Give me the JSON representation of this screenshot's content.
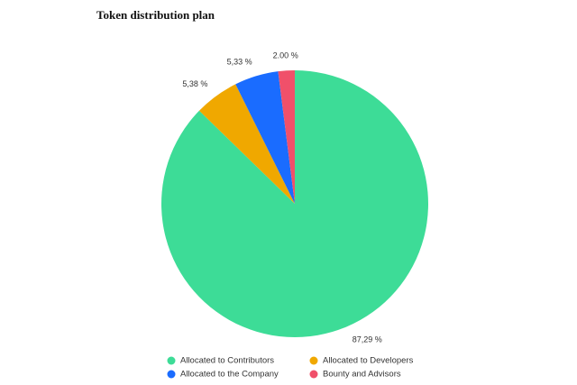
{
  "chart_data": {
    "type": "pie",
    "title": "Token distribution plan",
    "categories": [
      "Allocated to Contributors",
      "Allocated to Developers",
      "Allocated to the Company",
      "Bounty and Advisors"
    ],
    "values": [
      87.29,
      5.38,
      5.33,
      2.0
    ],
    "value_labels": [
      "87,29 %",
      "5,38 %",
      "5,33 %",
      "2.00 %"
    ],
    "colors": [
      "#3ddc97",
      "#f0a800",
      "#1a6cff",
      "#f0506a"
    ]
  }
}
